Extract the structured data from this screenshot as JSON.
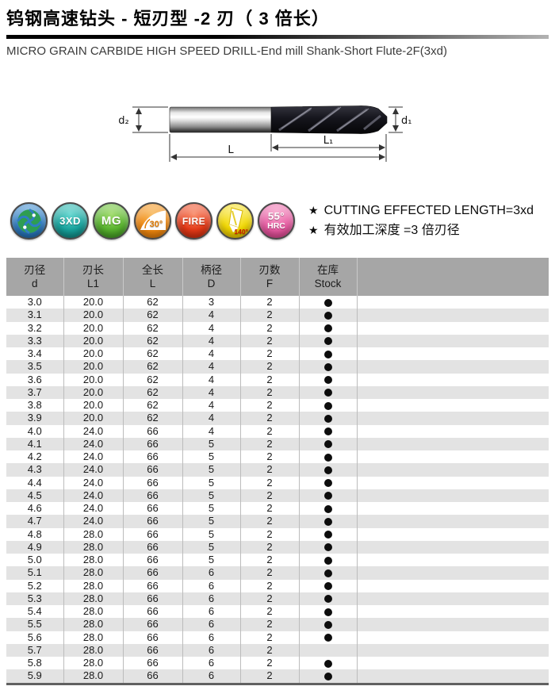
{
  "page": {
    "title": "钨钢高速钻头 - 短刃型 -2 刃（ 3 倍长）",
    "subtitle": "MICRO GRAIN CARBIDE HIGH SPEED DRILL-End mill Shank-Short Flute-2F(3xd)"
  },
  "diagram": {
    "labels": {
      "d2": "d₂",
      "d1": "d₁",
      "L": "L",
      "L1": "L₁"
    }
  },
  "badges": [
    {
      "id": "brand-logo",
      "label": "",
      "color_light": "#7ab4e0",
      "color": "#2f7dc4",
      "color_dark": "#14568f"
    },
    {
      "id": "3xd",
      "label": "3XD",
      "color_light": "#63d6cf",
      "color": "#17a39d",
      "color_dark": "#0b6f6b"
    },
    {
      "id": "mg",
      "label": "MG",
      "color_light": "#9fdb6a",
      "color": "#58b32e",
      "color_dark": "#2f7d18"
    },
    {
      "id": "helix-30",
      "label": "30°",
      "color_light": "#f8bc63",
      "color": "#f0880f",
      "color_dark": "#c56a06"
    },
    {
      "id": "fire",
      "label": "FIRE",
      "color_light": "#f98d6b",
      "color": "#e63a17",
      "color_dark": "#b12308"
    },
    {
      "id": "point-140",
      "label": "140°",
      "color_light": "#fbee7a",
      "color": "#f2d800",
      "color_dark": "#cfa900"
    },
    {
      "id": "hardness",
      "label": "55°",
      "label2": "HRC",
      "color_light": "#f8a6cd",
      "color": "#e75ba2",
      "color_dark": "#c03377"
    }
  ],
  "note_bullet": "★",
  "notes": [
    "CUTTING EFFECTED LENGTH=3xd",
    "有效加工深度 =3 倍刃径"
  ],
  "table": {
    "columns": [
      {
        "zh": "刃径",
        "en": "d"
      },
      {
        "zh": "刃长",
        "en": "L1"
      },
      {
        "zh": "全长",
        "en": "L"
      },
      {
        "zh": "柄径",
        "en": "D"
      },
      {
        "zh": "刃数",
        "en": "F"
      },
      {
        "zh": "在库",
        "en": "Stock"
      }
    ],
    "rows": [
      {
        "d": "3.0",
        "L1": "20.0",
        "L": "62",
        "D": "3",
        "F": "2",
        "stock": true
      },
      {
        "d": "3.1",
        "L1": "20.0",
        "L": "62",
        "D": "4",
        "F": "2",
        "stock": true
      },
      {
        "d": "3.2",
        "L1": "20.0",
        "L": "62",
        "D": "4",
        "F": "2",
        "stock": true
      },
      {
        "d": "3.3",
        "L1": "20.0",
        "L": "62",
        "D": "4",
        "F": "2",
        "stock": true
      },
      {
        "d": "3.4",
        "L1": "20.0",
        "L": "62",
        "D": "4",
        "F": "2",
        "stock": true
      },
      {
        "d": "3.5",
        "L1": "20.0",
        "L": "62",
        "D": "4",
        "F": "2",
        "stock": true
      },
      {
        "d": "3.6",
        "L1": "20.0",
        "L": "62",
        "D": "4",
        "F": "2",
        "stock": true
      },
      {
        "d": "3.7",
        "L1": "20.0",
        "L": "62",
        "D": "4",
        "F": "2",
        "stock": true
      },
      {
        "d": "3.8",
        "L1": "20.0",
        "L": "62",
        "D": "4",
        "F": "2",
        "stock": true
      },
      {
        "d": "3.9",
        "L1": "20.0",
        "L": "62",
        "D": "4",
        "F": "2",
        "stock": true
      },
      {
        "d": "4.0",
        "L1": "24.0",
        "L": "66",
        "D": "4",
        "F": "2",
        "stock": true
      },
      {
        "d": "4.1",
        "L1": "24.0",
        "L": "66",
        "D": "5",
        "F": "2",
        "stock": true
      },
      {
        "d": "4.2",
        "L1": "24.0",
        "L": "66",
        "D": "5",
        "F": "2",
        "stock": true
      },
      {
        "d": "4.3",
        "L1": "24.0",
        "L": "66",
        "D": "5",
        "F": "2",
        "stock": true
      },
      {
        "d": "4.4",
        "L1": "24.0",
        "L": "66",
        "D": "5",
        "F": "2",
        "stock": true
      },
      {
        "d": "4.5",
        "L1": "24.0",
        "L": "66",
        "D": "5",
        "F": "2",
        "stock": true
      },
      {
        "d": "4.6",
        "L1": "24.0",
        "L": "66",
        "D": "5",
        "F": "2",
        "stock": true
      },
      {
        "d": "4.7",
        "L1": "24.0",
        "L": "66",
        "D": "5",
        "F": "2",
        "stock": true
      },
      {
        "d": "4.8",
        "L1": "28.0",
        "L": "66",
        "D": "5",
        "F": "2",
        "stock": true
      },
      {
        "d": "4.9",
        "L1": "28.0",
        "L": "66",
        "D": "5",
        "F": "2",
        "stock": true
      },
      {
        "d": "5.0",
        "L1": "28.0",
        "L": "66",
        "D": "5",
        "F": "2",
        "stock": true
      },
      {
        "d": "5.1",
        "L1": "28.0",
        "L": "66",
        "D": "6",
        "F": "2",
        "stock": true
      },
      {
        "d": "5.2",
        "L1": "28.0",
        "L": "66",
        "D": "6",
        "F": "2",
        "stock": true
      },
      {
        "d": "5.3",
        "L1": "28.0",
        "L": "66",
        "D": "6",
        "F": "2",
        "stock": true
      },
      {
        "d": "5.4",
        "L1": "28.0",
        "L": "66",
        "D": "6",
        "F": "2",
        "stock": true
      },
      {
        "d": "5.5",
        "L1": "28.0",
        "L": "66",
        "D": "6",
        "F": "2",
        "stock": true
      },
      {
        "d": "5.6",
        "L1": "28.0",
        "L": "66",
        "D": "6",
        "F": "2",
        "stock": true
      },
      {
        "d": "5.7",
        "L1": "28.0",
        "L": "66",
        "D": "6",
        "F": "2",
        "stock": false
      },
      {
        "d": "5.8",
        "L1": "28.0",
        "L": "66",
        "D": "6",
        "F": "2",
        "stock": true
      },
      {
        "d": "5.9",
        "L1": "28.0",
        "L": "66",
        "D": "6",
        "F": "2",
        "stock": true
      }
    ]
  },
  "colors": {
    "table_header_bg": "#a6a6a6",
    "row_stripe": "#e3e3e3",
    "stock_dot": "#0d0d0d",
    "title_rule_start": "#000000",
    "title_rule_end": "#b2b2b2"
  }
}
